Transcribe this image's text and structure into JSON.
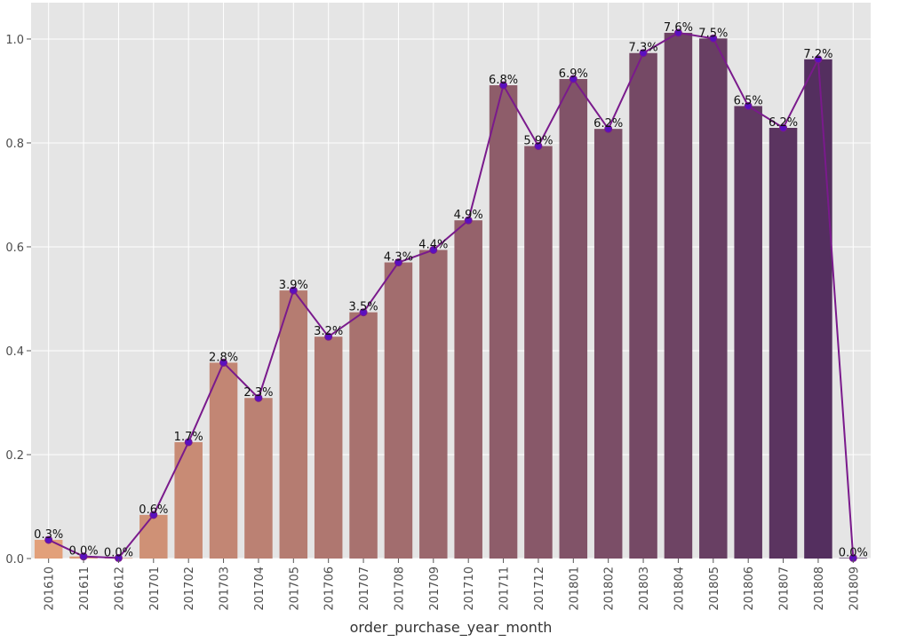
{
  "chart_data": {
    "type": "bar",
    "xlabel": "order_purchase_year_month",
    "ylabel": "",
    "ylim": [
      0,
      1.0
    ],
    "yticks": [
      "0.0",
      "0.2",
      "0.4",
      "0.6",
      "0.8",
      "1.0"
    ],
    "grid": true,
    "categories": [
      "201610",
      "201611",
      "201612",
      "201701",
      "201702",
      "201703",
      "201704",
      "201705",
      "201706",
      "201707",
      "201708",
      "201709",
      "201710",
      "201711",
      "201712",
      "201801",
      "201802",
      "201803",
      "201804",
      "201805",
      "201806",
      "201807",
      "201808",
      "201809"
    ],
    "values": [
      0.036,
      0.004,
      0.001,
      0.084,
      0.224,
      0.377,
      0.309,
      0.516,
      0.427,
      0.474,
      0.57,
      0.594,
      0.651,
      0.911,
      0.794,
      0.923,
      0.827,
      0.973,
      1.012,
      1.001,
      0.871,
      0.829,
      0.961,
      0.001
    ],
    "data_labels": [
      "0.3%",
      "0.0%",
      "0.0%",
      "0.6%",
      "1.7%",
      "2.8%",
      "2.3%",
      "3.9%",
      "3.2%",
      "3.5%",
      "4.3%",
      "4.4%",
      "4.9%",
      "6.8%",
      "5.9%",
      "6.9%",
      "6.2%",
      "7.3%",
      "7.6%",
      "7.5%",
      "6.5%",
      "6.2%",
      "7.2%",
      "0.0%"
    ],
    "line_values": [
      0.036,
      0.004,
      0.001,
      0.084,
      0.224,
      0.377,
      0.309,
      0.516,
      0.427,
      0.474,
      0.57,
      0.594,
      0.651,
      0.911,
      0.794,
      0.923,
      0.827,
      0.973,
      1.012,
      1.001,
      0.871,
      0.829,
      0.961,
      0.001
    ],
    "colors": {
      "background": "#e5e5e5",
      "grid": "#ffffff",
      "line": "#7a1a8c",
      "marker": "#5a10c0",
      "palette_start": "#e2a07a",
      "palette_end": "#4e2a5e"
    }
  }
}
